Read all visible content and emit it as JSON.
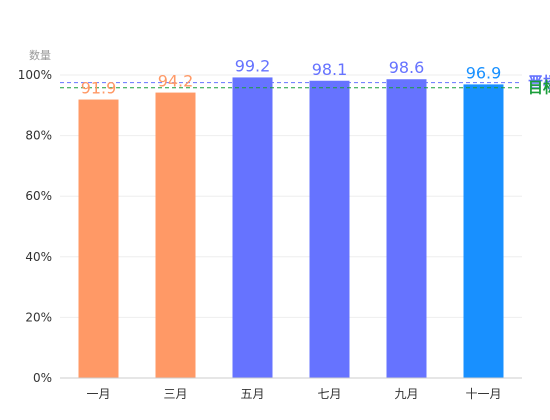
{
  "chart_data": {
    "type": "bar",
    "title": "",
    "ylabel": "数量",
    "xlabel": "",
    "ylim": [
      0,
      100
    ],
    "yticks": [
      0,
      20,
      40,
      60,
      80,
      100
    ],
    "ytick_labels": [
      "0%",
      "20%",
      "40%",
      "60%",
      "80%",
      "100%"
    ],
    "categories": [
      "一月",
      "三月",
      "五月",
      "七月",
      "九月",
      "十一月"
    ],
    "values": [
      91.9,
      94.2,
      99.2,
      98.1,
      98.6,
      96.9
    ],
    "bar_colors": [
      "#ff9966",
      "#ff9966",
      "#6673ff",
      "#6673ff",
      "#6673ff",
      "#1890ff"
    ],
    "label_colors": [
      "#ff9966",
      "#ff9966",
      "#6673ff",
      "#6673ff",
      "#6673ff",
      "#1890ff"
    ],
    "grid": true,
    "reference_lines": [
      {
        "label": "晋楼",
        "value": 97.5,
        "color": "#6673ff",
        "label_color": "#6673ff",
        "style": "dashed"
      },
      {
        "label": "目标",
        "value": 95.8,
        "color": "#1a9e3a",
        "label_color": "#1a9e3a",
        "style": "dashed"
      }
    ]
  }
}
